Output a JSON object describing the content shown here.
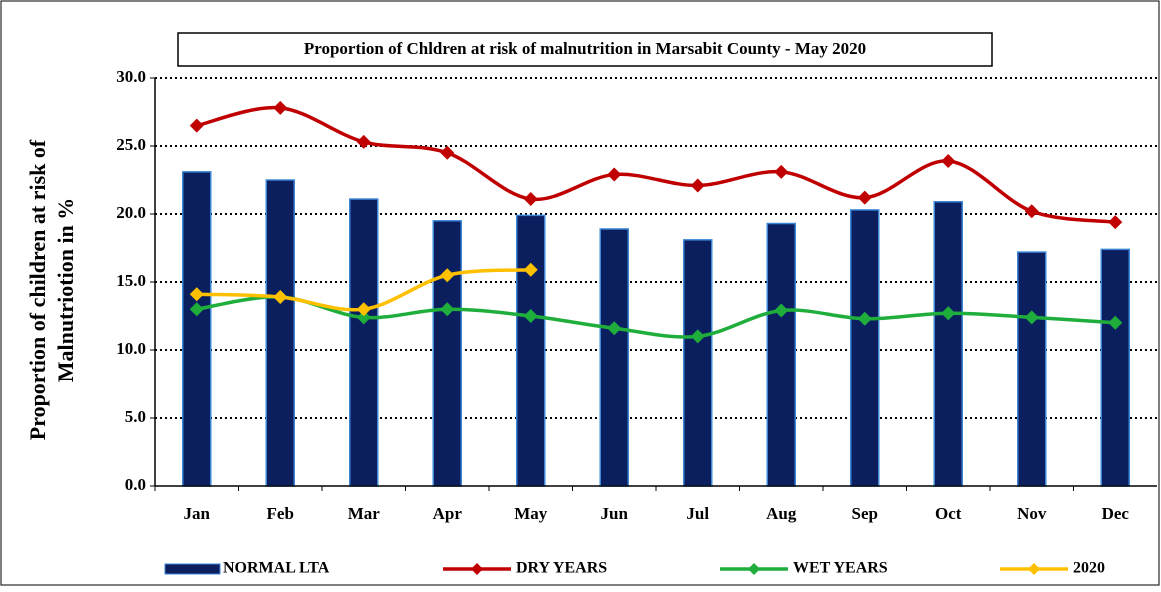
{
  "chart_data": {
    "type": "bar_line",
    "title": "Proportion of Chldren at risk of malnutrition in Marsabit County - May 2020",
    "y_label": [
      "Proportion of children at risk of",
      "Malnutriotion in %"
    ],
    "categories": [
      "Jan",
      "Feb",
      "Mar",
      "Apr",
      "May",
      "Jun",
      "Jul",
      "Aug",
      "Sep",
      "Oct",
      "Nov",
      "Dec"
    ],
    "series": [
      {
        "name": "NORMAL LTA",
        "type": "bar",
        "color": "#0b1f5e",
        "values": [
          23.1,
          22.5,
          21.1,
          19.5,
          19.9,
          18.9,
          18.1,
          19.3,
          20.3,
          20.9,
          17.2,
          17.4
        ]
      },
      {
        "name": "DRY YEARS",
        "type": "line",
        "color": "#c00000",
        "values": [
          26.5,
          27.8,
          25.3,
          24.5,
          21.1,
          22.9,
          22.1,
          23.1,
          21.2,
          23.9,
          20.2,
          19.4
        ]
      },
      {
        "name": "WET YEARS",
        "type": "line",
        "color": "#1fae3c",
        "values": [
          13.0,
          13.9,
          12.4,
          13.0,
          12.5,
          11.6,
          11.0,
          12.9,
          12.3,
          12.7,
          12.4,
          12.0
        ]
      },
      {
        "name": "2020",
        "type": "line",
        "color": "#ffc000",
        "values": [
          14.1,
          13.9,
          13.0,
          15.5,
          15.9,
          null,
          null,
          null,
          null,
          null,
          null,
          null
        ]
      }
    ],
    "ylim": [
      0,
      30
    ],
    "yticks": [
      {
        "value": 0,
        "label": "0.0"
      },
      {
        "value": 5,
        "label": "5.0"
      },
      {
        "value": 10,
        "label": "10.0"
      },
      {
        "value": 15,
        "label": "15.0"
      },
      {
        "value": 20,
        "label": "20.0"
      },
      {
        "value": 25,
        "label": "25.0"
      },
      {
        "value": 30,
        "label": "30.0"
      }
    ],
    "grid": true,
    "legend": "bottom"
  }
}
